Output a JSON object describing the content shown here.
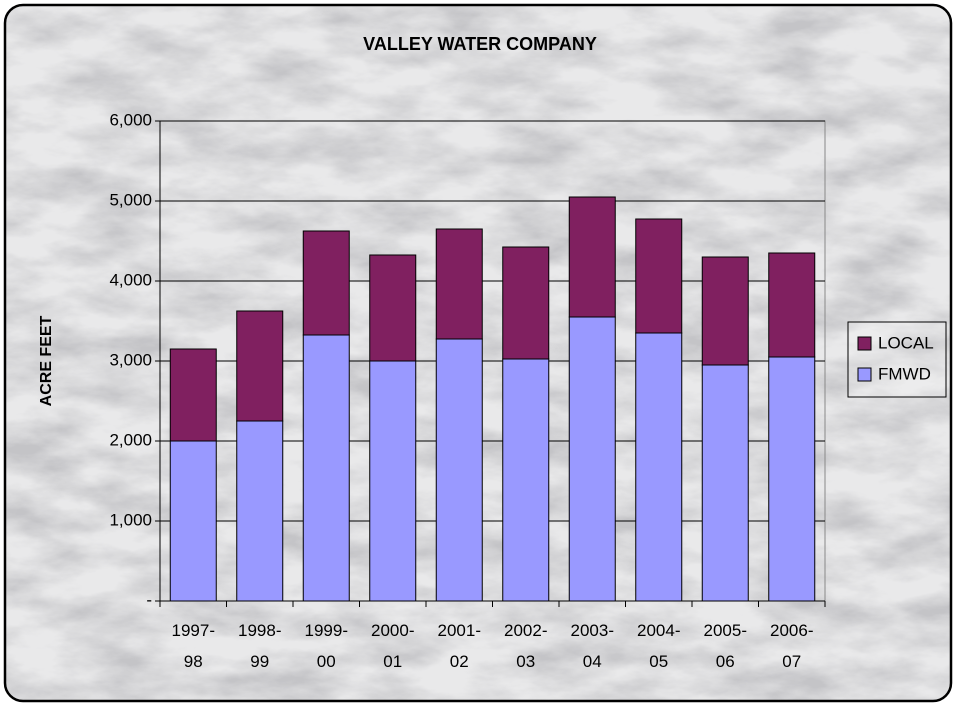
{
  "chart_data": {
    "type": "stacked_bar",
    "title": "VALLEY WATER COMPANY",
    "y_label": "ACRE FEET",
    "categories": [
      "1997-98",
      "1998-99",
      "1999-00",
      "2000-01",
      "2001-02",
      "2002-03",
      "2003-04",
      "2004-05",
      "2005-06",
      "2006-07"
    ],
    "series": [
      {
        "name": "FMWD",
        "color": "#9999ff",
        "values": [
          2000,
          2250,
          3325,
          3000,
          3275,
          3025,
          3550,
          3350,
          2950,
          3050
        ]
      },
      {
        "name": "LOCAL",
        "color": "#802060",
        "values": [
          1150,
          1375,
          1300,
          1325,
          1375,
          1400,
          1500,
          1425,
          1350,
          1300
        ]
      }
    ],
    "ylim": [
      0,
      6000
    ],
    "yticks": [
      {
        "value": 0,
        "label": "-"
      },
      {
        "value": 1000,
        "label": "1,000"
      },
      {
        "value": 2000,
        "label": "2,000"
      },
      {
        "value": 3000,
        "label": "3,000"
      },
      {
        "value": 4000,
        "label": "4,000"
      },
      {
        "value": 5000,
        "label": "5,000"
      },
      {
        "value": 6000,
        "label": "6,000"
      }
    ],
    "grid": true,
    "legend": "right"
  }
}
